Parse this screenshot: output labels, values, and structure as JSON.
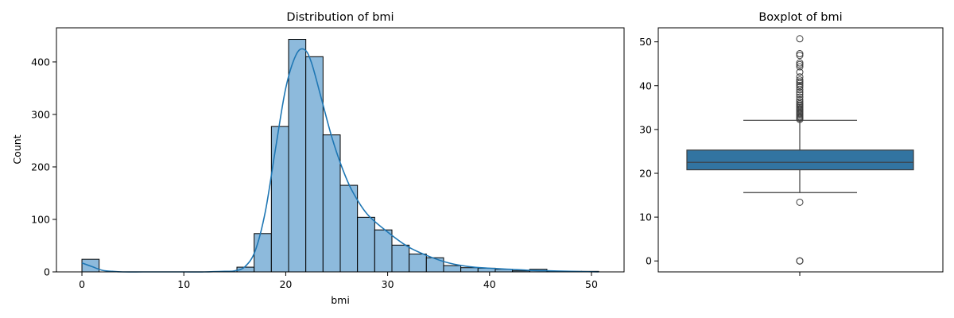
{
  "chart_data": [
    {
      "type": "bar",
      "subtype": "histogram-with-kde",
      "title": "Distribution of bmi",
      "xlabel": "bmi",
      "ylabel": "Count",
      "xlim": [
        -2.5,
        53.2
      ],
      "ylim": [
        0,
        465
      ],
      "xticks": [
        0,
        10,
        20,
        30,
        40,
        50
      ],
      "yticks": [
        0,
        100,
        200,
        300,
        400
      ],
      "bin_width": 1.69,
      "bins": [
        {
          "start": 0.0,
          "end": 1.69,
          "count": 24
        },
        {
          "start": 15.21,
          "end": 16.9,
          "count": 9
        },
        {
          "start": 16.9,
          "end": 18.59,
          "count": 73
        },
        {
          "start": 18.59,
          "end": 20.28,
          "count": 277
        },
        {
          "start": 20.28,
          "end": 21.97,
          "count": 443
        },
        {
          "start": 21.97,
          "end": 23.66,
          "count": 410
        },
        {
          "start": 23.66,
          "end": 25.35,
          "count": 261
        },
        {
          "start": 25.35,
          "end": 27.04,
          "count": 165
        },
        {
          "start": 27.04,
          "end": 28.73,
          "count": 104
        },
        {
          "start": 28.73,
          "end": 30.42,
          "count": 80
        },
        {
          "start": 30.42,
          "end": 32.11,
          "count": 51
        },
        {
          "start": 32.11,
          "end": 33.8,
          "count": 34
        },
        {
          "start": 33.8,
          "end": 35.49,
          "count": 27
        },
        {
          "start": 35.49,
          "end": 37.18,
          "count": 12
        },
        {
          "start": 37.18,
          "end": 38.87,
          "count": 8
        },
        {
          "start": 38.87,
          "end": 40.56,
          "count": 7
        },
        {
          "start": 40.56,
          "end": 42.25,
          "count": 5
        },
        {
          "start": 42.25,
          "end": 43.94,
          "count": 2
        },
        {
          "start": 43.94,
          "end": 45.63,
          "count": 5
        },
        {
          "start": 45.63,
          "end": 47.32,
          "count": 1
        },
        {
          "start": 47.32,
          "end": 49.01,
          "count": 1
        },
        {
          "start": 49.01,
          "end": 50.7,
          "count": 1
        }
      ],
      "kde": {
        "x": [
          0,
          1,
          2,
          3,
          4,
          6,
          8,
          10,
          12,
          14,
          15,
          16,
          17,
          18,
          19,
          20,
          21,
          21.8,
          22.5,
          23.5,
          24.5,
          25.5,
          26.5,
          28,
          30,
          32,
          34,
          36,
          38,
          40,
          42,
          44,
          46,
          48,
          50.7
        ],
        "y": [
          17,
          10,
          3,
          1,
          0,
          0,
          0,
          0,
          0,
          1,
          2,
          10,
          40,
          115,
          235,
          350,
          413,
          424,
          400,
          330,
          258,
          200,
          155,
          110,
          76,
          48,
          30,
          17,
          10,
          7,
          5,
          3,
          2,
          1,
          0
        ]
      },
      "colors": {
        "bar_fill": "#8dbadc",
        "bar_edge": "#000000",
        "kde_line": "#1f77b4"
      },
      "legend": "none",
      "grid": false
    },
    {
      "type": "boxplot",
      "title": "Boxplot of bmi",
      "ylim": [
        -2.5,
        53.2
      ],
      "yticks": [
        0,
        10,
        20,
        30,
        40,
        50
      ],
      "box": {
        "whisker_low": 15.6,
        "q1": 20.8,
        "median": 22.5,
        "q3": 25.3,
        "whisker_high": 32.1
      },
      "outliers": [
        0,
        0,
        0,
        13.4,
        32.3,
        32.6,
        32.9,
        33.2,
        33.5,
        33.8,
        34.1,
        34.4,
        34.7,
        35.0,
        35.3,
        35.6,
        35.9,
        36.3,
        36.8,
        37.4,
        38.0,
        38.5,
        39.1,
        39.7,
        40.1,
        40.5,
        40.9,
        41.3,
        42.0,
        43.1,
        44.3,
        44.8,
        45.2,
        46.9,
        47.3,
        50.7
      ],
      "colors": {
        "box_fill": "#3274a1",
        "line": "#3d3d3d"
      },
      "legend": "none",
      "grid": false
    }
  ]
}
